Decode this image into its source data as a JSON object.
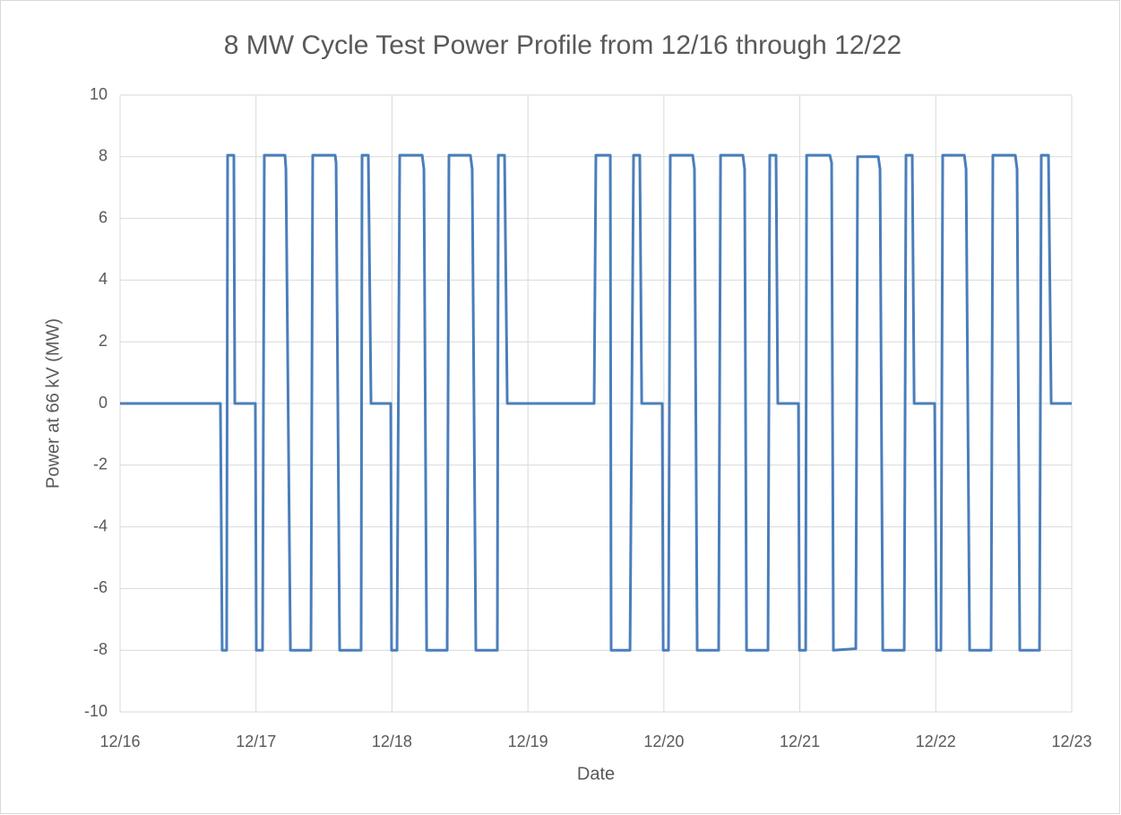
{
  "chart_data": {
    "type": "line",
    "title": "8 MW Cycle Test Power Profile from 12/16 through 12/22",
    "x_label": "Date",
    "y_label": "Power at 66 kV (MW)",
    "x": [
      16.0,
      16.738,
      16.751,
      16.784,
      16.791,
      16.837,
      16.844,
      16.995,
      17.002,
      17.048,
      17.061,
      17.213,
      17.22,
      17.253,
      17.404,
      17.417,
      17.582,
      17.589,
      17.615,
      17.773,
      17.78,
      17.826,
      17.846,
      17.991,
      17.997,
      18.037,
      18.057,
      18.222,
      18.235,
      18.255,
      18.406,
      18.419,
      18.577,
      18.59,
      18.617,
      18.775,
      18.782,
      18.828,
      18.848,
      19.408,
      19.487,
      19.5,
      19.606,
      19.612,
      19.751,
      19.777,
      19.823,
      19.837,
      19.988,
      19.995,
      20.034,
      20.047,
      20.212,
      20.225,
      20.245,
      20.403,
      20.417,
      20.581,
      20.594,
      20.608,
      20.766,
      20.779,
      20.825,
      20.838,
      20.99,
      20.997,
      21.043,
      21.05,
      21.221,
      21.234,
      21.247,
      21.412,
      21.425,
      21.577,
      21.59,
      21.61,
      21.768,
      21.781,
      21.827,
      21.841,
      21.992,
      22.005,
      22.038,
      22.051,
      22.21,
      22.223,
      22.249,
      22.407,
      22.42,
      22.585,
      22.598,
      22.618,
      22.763,
      22.776,
      22.829,
      22.849,
      23.0
    ],
    "series": [
      {
        "name": "Power at 66 kV (MW)",
        "color": "#4a7ebb",
        "values": [
          0,
          0,
          -8,
          -8,
          8.05,
          8.05,
          0,
          0,
          -8,
          -8,
          8.05,
          8.05,
          7.6,
          -8,
          -8,
          8.05,
          8.05,
          7.8,
          -8,
          -8,
          8.05,
          8.05,
          0,
          0,
          -8,
          -8,
          8.05,
          8.05,
          7.6,
          -8,
          -8,
          8.05,
          8.05,
          7.6,
          -8,
          -8,
          8.05,
          8.05,
          0,
          0,
          0,
          8.05,
          8.05,
          -8,
          -8,
          8.05,
          8.05,
          0,
          0,
          -8,
          -8,
          8.05,
          8.05,
          7.6,
          -8,
          -8,
          8.05,
          8.05,
          7.6,
          -8,
          -8,
          8.05,
          8.05,
          0,
          0,
          -8,
          -8,
          8.05,
          8.05,
          7.8,
          -8,
          -7.95,
          8.0,
          8.0,
          7.6,
          -8,
          -8,
          8.05,
          8.05,
          0,
          0,
          -8,
          -8,
          8.05,
          8.05,
          7.6,
          -8,
          -8,
          8.05,
          8.05,
          7.6,
          -8,
          -8,
          8.05,
          8.05,
          0,
          0
        ]
      }
    ],
    "xlim": [
      16,
      23
    ],
    "xticks": [
      {
        "value": 16,
        "label": "12/16"
      },
      {
        "value": 17,
        "label": "12/17"
      },
      {
        "value": 18,
        "label": "12/18"
      },
      {
        "value": 19,
        "label": "12/19"
      },
      {
        "value": 20,
        "label": "12/20"
      },
      {
        "value": 21,
        "label": "12/21"
      },
      {
        "value": 22,
        "label": "12/22"
      },
      {
        "value": 23,
        "label": "12/23"
      }
    ],
    "ylim": [
      -10,
      10
    ],
    "yticks": [
      -10,
      -8,
      -6,
      -4,
      -2,
      0,
      2,
      4,
      6,
      8,
      10
    ],
    "grid": true
  }
}
